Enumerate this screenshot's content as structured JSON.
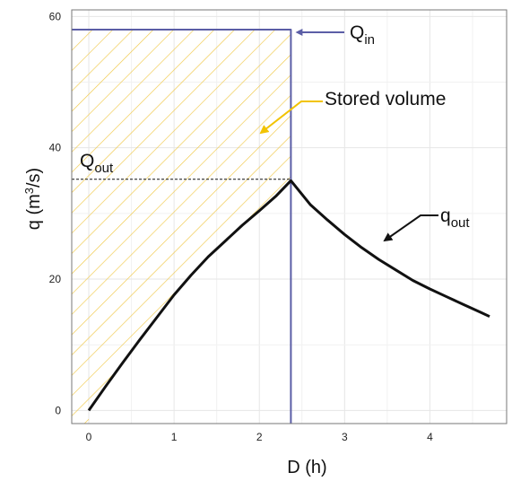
{
  "chart_data": {
    "type": "line",
    "xlabel": "D (h)",
    "ylabel": "q (m³/s)",
    "xlim": [
      -0.2,
      4.9
    ],
    "ylim": [
      -2,
      61
    ],
    "x_ticks": [
      0,
      1,
      2,
      3,
      4
    ],
    "y_ticks": [
      0,
      20,
      40,
      60
    ],
    "grid": true,
    "series": [
      {
        "name": "Qin",
        "color": "#5b5ea6",
        "x": [
          2.37,
          2.37,
          -0.2
        ],
        "y": [
          -2,
          58,
          58
        ]
      },
      {
        "name": "qout",
        "color": "#111111",
        "x": [
          0,
          0.2,
          0.4,
          0.6,
          0.8,
          1.0,
          1.2,
          1.4,
          1.6,
          1.8,
          2.0,
          2.2,
          2.37,
          2.6,
          2.8,
          3.0,
          3.2,
          3.4,
          3.6,
          3.8,
          4.0,
          4.2,
          4.4,
          4.6,
          4.7
        ],
        "y": [
          0,
          3.7,
          7.3,
          10.8,
          14.2,
          17.6,
          20.6,
          23.4,
          25.8,
          28.2,
          30.4,
          32.7,
          35.0,
          31.3,
          29.0,
          26.8,
          24.8,
          23.0,
          21.4,
          19.8,
          18.5,
          17.3,
          16.1,
          14.9,
          14.3
        ]
      },
      {
        "name": "Qout",
        "color": "#111111",
        "style": "dashed",
        "x": [
          -0.2,
          2.37
        ],
        "y": [
          35.2,
          35.2
        ]
      }
    ],
    "annotations": [
      {
        "id": "qin",
        "main": "Q",
        "sub": "in"
      },
      {
        "id": "stored",
        "text": "Stored volume",
        "color": "#f2c300"
      },
      {
        "id": "qout-peak",
        "main": "Q",
        "sub": "out"
      },
      {
        "id": "qout-curve",
        "main": "q",
        "sub": "out"
      }
    ],
    "hatch_color": "#f0c94a"
  }
}
